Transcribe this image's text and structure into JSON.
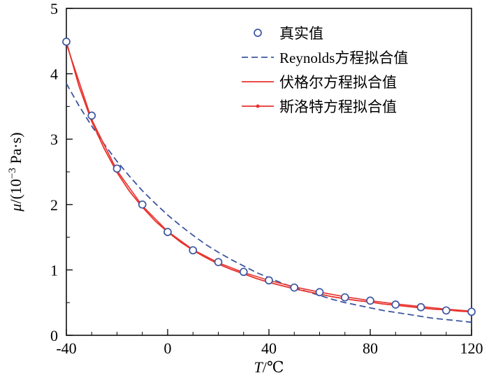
{
  "figure": {
    "background": "#ffffff",
    "axis_color": "#000000",
    "blue": "#3c55a0",
    "red": "#e8322d"
  },
  "chart_data": {
    "type": "line",
    "title": "",
    "xlabel": "T/℃",
    "ylabel": "μ/(10⁻³ Pa·s)",
    "xlabel_parts": {
      "sym": "T",
      "unit": "/℃"
    },
    "ylabel_parts": {
      "sym": "μ",
      "mid": "/(10",
      "sup": "−3",
      "unit": " Pa·s)"
    },
    "xlim": [
      -40,
      120
    ],
    "ylim": [
      0,
      5
    ],
    "x_ticks": [
      -40,
      0,
      40,
      80,
      120
    ],
    "x_minor_step": 10,
    "y_ticks": [
      0,
      1,
      2,
      3,
      4,
      5
    ],
    "y_minor_step": 0.5,
    "grid": false,
    "legend_position": "inside-top-right",
    "series": [
      {
        "name": "真实值",
        "type": "scatter",
        "marker": "open-circle",
        "color": "#3c55a0",
        "x": [
          -40,
          -30,
          -20,
          -10,
          0,
          10,
          20,
          30,
          40,
          50,
          60,
          70,
          80,
          90,
          100,
          110,
          120
        ],
        "y": [
          4.49,
          3.36,
          2.55,
          2.0,
          1.58,
          1.3,
          1.12,
          0.97,
          0.84,
          0.73,
          0.66,
          0.58,
          0.53,
          0.47,
          0.43,
          0.38,
          0.36
        ]
      },
      {
        "name": "Reynolds方程拟合值",
        "type": "line",
        "style": "dashed",
        "color": "#3c55a0",
        "x": [
          -40,
          -35,
          -30,
          -25,
          -20,
          -15,
          -10,
          -5,
          0,
          5,
          10,
          15,
          20,
          25,
          30,
          35,
          40,
          45,
          50,
          55,
          60,
          65,
          70,
          75,
          80,
          85,
          90,
          95,
          100,
          105,
          110,
          115,
          120
        ],
        "y": [
          3.85,
          3.51,
          3.2,
          2.92,
          2.66,
          2.43,
          2.21,
          2.02,
          1.84,
          1.68,
          1.53,
          1.39,
          1.27,
          1.16,
          1.06,
          0.96,
          0.88,
          0.8,
          0.73,
          0.67,
          0.61,
          0.55,
          0.5,
          0.46,
          0.42,
          0.38,
          0.35,
          0.32,
          0.29,
          0.26,
          0.24,
          0.22,
          0.2
        ]
      },
      {
        "name": "伏格尔方程拟合值",
        "type": "line",
        "style": "solid",
        "color": "#e8322d",
        "x": [
          -40,
          -35,
          -30,
          -25,
          -20,
          -15,
          -10,
          -5,
          0,
          5,
          10,
          15,
          20,
          25,
          30,
          35,
          40,
          45,
          50,
          55,
          60,
          65,
          70,
          75,
          80,
          85,
          90,
          95,
          100,
          105,
          110,
          115,
          120
        ],
        "y": [
          4.49,
          3.81,
          3.27,
          2.85,
          2.49,
          2.2,
          1.96,
          1.75,
          1.58,
          1.43,
          1.3,
          1.19,
          1.09,
          1.01,
          0.94,
          0.87,
          0.81,
          0.76,
          0.71,
          0.67,
          0.63,
          0.59,
          0.56,
          0.53,
          0.51,
          0.48,
          0.46,
          0.44,
          0.42,
          0.4,
          0.39,
          0.37,
          0.36
        ]
      },
      {
        "name": "斯洛特方程拟合值",
        "type": "line-dot",
        "style": "solid",
        "color": "#e8322d",
        "x": [
          -40,
          -30,
          -20,
          -10,
          0,
          10,
          20,
          30,
          40,
          50,
          60,
          70,
          80,
          90,
          100,
          110,
          120
        ],
        "y": [
          4.46,
          3.3,
          2.52,
          1.98,
          1.59,
          1.31,
          1.11,
          0.96,
          0.84,
          0.74,
          0.66,
          0.59,
          0.53,
          0.48,
          0.44,
          0.4,
          0.37
        ]
      }
    ]
  }
}
